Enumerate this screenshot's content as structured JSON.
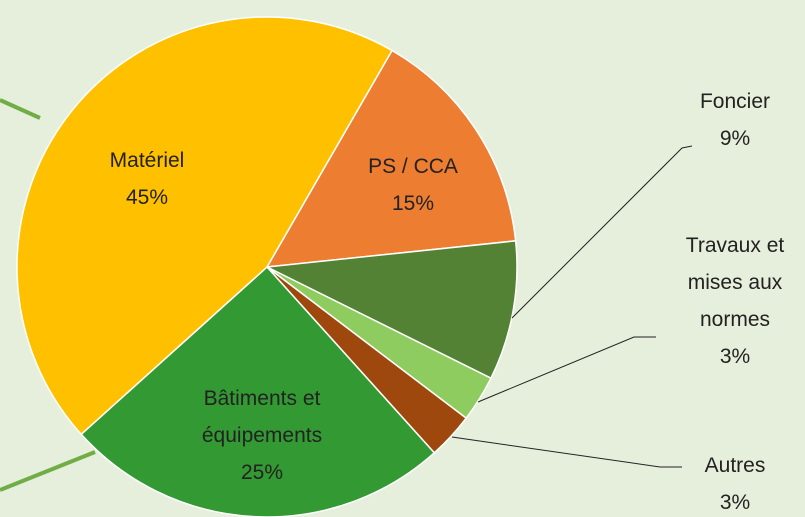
{
  "chart_data": {
    "type": "pie",
    "categories": [
      "PS / CCA",
      "Foncier",
      "Travaux et mises aux normes",
      "Autres",
      "Bâtiments et équipements",
      "Matériel"
    ],
    "values": [
      15,
      9,
      3,
      3,
      25,
      45
    ],
    "value_labels": [
      "15%",
      "9%",
      "3%",
      "3%",
      "25%",
      "45%"
    ],
    "colors": [
      "#ed7d31",
      "#548235",
      "#8fcc5f",
      "#9e480e",
      "#339933",
      "#ffc000"
    ],
    "start_angle": 30
  }
}
